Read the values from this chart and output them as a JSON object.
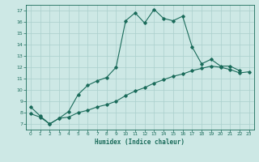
{
  "xlabel": "Humidex (Indice chaleur)",
  "bg_color": "#cde8e5",
  "grid_color": "#aacfcc",
  "line_color": "#1a6b5a",
  "xlim": [
    -0.5,
    23.5
  ],
  "ylim": [
    6.5,
    17.5
  ],
  "yticks": [
    7,
    8,
    9,
    10,
    11,
    12,
    13,
    14,
    15,
    16,
    17
  ],
  "xticks": [
    0,
    1,
    2,
    3,
    4,
    5,
    6,
    7,
    8,
    9,
    10,
    11,
    12,
    13,
    14,
    15,
    16,
    17,
    18,
    19,
    20,
    21,
    22,
    23
  ],
  "series1_x": [
    0,
    1,
    2,
    3,
    4,
    5,
    6,
    7,
    8,
    9,
    10,
    11,
    12,
    13,
    14,
    15,
    16,
    17,
    18,
    19,
    20,
    21,
    22
  ],
  "series1_y": [
    8.5,
    7.7,
    7.0,
    7.5,
    8.1,
    9.6,
    10.4,
    10.8,
    11.1,
    12.0,
    16.1,
    16.8,
    15.9,
    17.1,
    16.3,
    16.1,
    16.5,
    13.8,
    12.3,
    12.7,
    12.1,
    12.1,
    11.7
  ],
  "series2_x": [
    0,
    1,
    2,
    3,
    4,
    5,
    6,
    7,
    8,
    9,
    10,
    11,
    12,
    13,
    14,
    15,
    16,
    17,
    18,
    19,
    20,
    21,
    22,
    23
  ],
  "series2_y": [
    7.9,
    7.6,
    7.0,
    7.5,
    7.6,
    8.0,
    8.2,
    8.5,
    8.7,
    9.0,
    9.5,
    9.9,
    10.2,
    10.6,
    10.9,
    11.2,
    11.4,
    11.7,
    11.9,
    12.1,
    12.0,
    11.8,
    11.5,
    11.6
  ]
}
